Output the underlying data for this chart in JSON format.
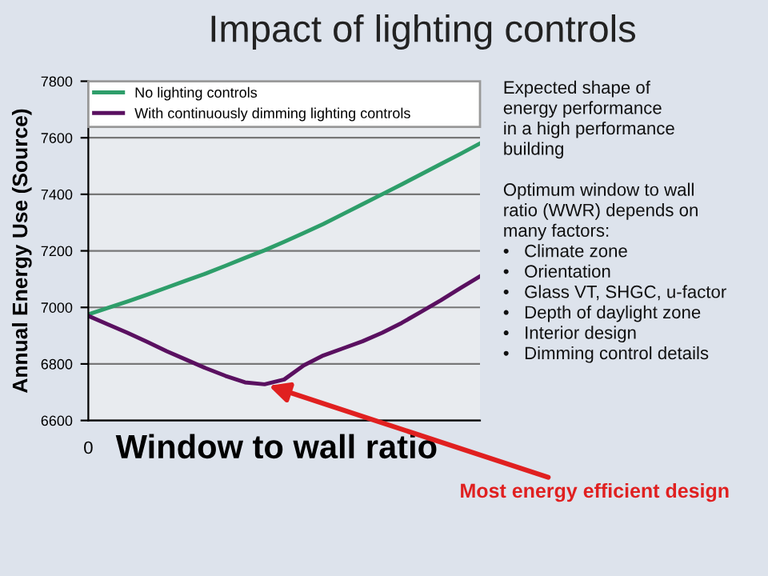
{
  "chart_data": {
    "type": "line",
    "title": "Impact of lighting controls",
    "xlabel": "Window to wall ratio",
    "ylabel": "Annual Energy Use (Source)",
    "categories": [
      null,
      null,
      null,
      null,
      null,
      null,
      null,
      null,
      null,
      null,
      null,
      null,
      null,
      null,
      null,
      null,
      null,
      null,
      null,
      null,
      null
    ],
    "ylim": [
      6600,
      7800
    ],
    "yticks": [
      6600,
      6800,
      7000,
      7200,
      7400,
      7600,
      7800
    ],
    "grid": "y",
    "legend": "top",
    "series": [
      {
        "name": "No lighting controls",
        "color": "#2e9e6a",
        "values": [
          6975,
          6998,
          7021,
          7045,
          7070,
          7095,
          7120,
          7147,
          7175,
          7202,
          7232,
          7263,
          7295,
          7330,
          7365,
          7400,
          7435,
          7471,
          7507,
          7543,
          7580
        ]
      },
      {
        "name": "With continuously dimming lighting controls",
        "color": "#5a1060",
        "values": [
          6970,
          6940,
          6910,
          6878,
          6845,
          6815,
          6785,
          6758,
          6735,
          6728,
          6745,
          6795,
          6830,
          6855,
          6880,
          6910,
          6945,
          6985,
          7025,
          7068,
          7110
        ]
      }
    ],
    "annotations": [
      "0",
      "Expected shape of\nenergy performance\nin a high performance\nbuilding\n\nOptimum window to wall\nratio (WWR) depends on\nmany factors:\n•   Climate zone\n•   Orientation\n•   Glass VT, SHGC, u-factor\n•   Depth of daylight zone\n•   Interior design\n•   Dimming control details",
      "Most energy efficient design"
    ]
  }
}
